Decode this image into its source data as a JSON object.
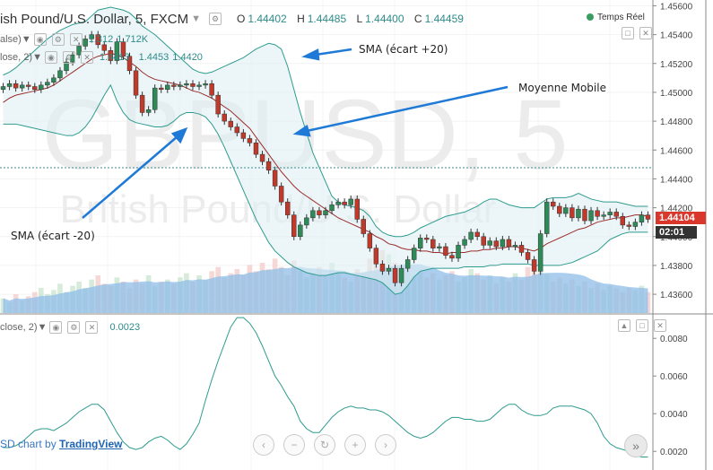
{
  "header": {
    "symbol": "ish Pound/U.S. Dollar, 5, FXCM",
    "ohlc": [
      {
        "key": "O",
        "value": "1.44402"
      },
      {
        "key": "H",
        "value": "1.44485"
      },
      {
        "key": "L",
        "value": "1.44400"
      },
      {
        "key": "C",
        "value": "1.44459"
      }
    ],
    "live_label": "Temps Réel"
  },
  "indicators": {
    "row1_label": "alse)",
    "row1_value": "1.312",
    "row1_value2": "1.712K",
    "row2_label": "lose, 2)",
    "row2_prefix": "1.4413",
    "row2_value": "1.4453",
    "row2_value2": "1.4420",
    "lower_label": "close, 2)",
    "lower_value": "0.0023"
  },
  "watermark": {
    "symbol": "GBPUSD, 5",
    "name": "British Pound/U.S. Dollar"
  },
  "price_tag": "1.44104",
  "time_tag": "02:01",
  "annotations": {
    "sma_plus": "SMA (écart +20)",
    "moving_average": "Moyenne Mobile",
    "sma_minus": "SMA (écart -20)"
  },
  "footer": {
    "prefix": "SD chart by ",
    "brand": "TradingView"
  },
  "colors": {
    "up": "#2e8b57",
    "down": "#c0392b",
    "band": "#2e9b8f",
    "ma": "#9b2d2d",
    "volume": "#9ec8ec",
    "arrow": "#1e7ad6"
  },
  "chart_data": [
    {
      "type": "candlestick",
      "title": "",
      "y_ticks": [
        1.456,
        1.454,
        1.452,
        1.45,
        1.448,
        1.446,
        1.444,
        1.442,
        1.44,
        1.438,
        1.436
      ],
      "y_tick_labels": [
        "1.45600",
        "1.45400",
        "1.45200",
        "1.45000",
        "1.44800",
        "1.44600",
        "1.44400",
        "1.44200",
        "1.44000",
        "1.43800",
        "1.43600"
      ],
      "ylim": [
        1.4347,
        1.4564
      ],
      "close": [
        1.4504,
        1.4506,
        1.4503,
        1.4505,
        1.4504,
        1.4502,
        1.4505,
        1.4507,
        1.451,
        1.4515,
        1.4521,
        1.4526,
        1.4532,
        1.4537,
        1.454,
        1.4533,
        1.4529,
        1.4522,
        1.4535,
        1.4525,
        1.4515,
        1.4498,
        1.4486,
        1.4488,
        1.4503,
        1.4502,
        1.4505,
        1.4504,
        1.4505,
        1.4506,
        1.4504,
        1.4505,
        1.4506,
        1.4498,
        1.4485,
        1.448,
        1.4476,
        1.4472,
        1.4468,
        1.4465,
        1.4457,
        1.4452,
        1.4446,
        1.4435,
        1.4424,
        1.4415,
        1.44,
        1.4408,
        1.4413,
        1.4418,
        1.4415,
        1.4418,
        1.4422,
        1.4424,
        1.4422,
        1.4426,
        1.4412,
        1.4402,
        1.4392,
        1.4381,
        1.4376,
        1.4378,
        1.4368,
        1.4378,
        1.4384,
        1.4392,
        1.4399,
        1.4398,
        1.4392,
        1.4393,
        1.4387,
        1.4385,
        1.4394,
        1.4398,
        1.4403,
        1.44,
        1.4394,
        1.4397,
        1.4393,
        1.4398,
        1.4393,
        1.4394,
        1.4389,
        1.4384,
        1.4376,
        1.4402,
        1.4424,
        1.4421,
        1.4416,
        1.442,
        1.4413,
        1.4419,
        1.4411,
        1.4418,
        1.4414,
        1.4415,
        1.4417,
        1.4414,
        1.4408,
        1.4407,
        1.441,
        1.4415,
        1.4412
      ],
      "sma": [
        1.4493,
        1.4496,
        1.4498,
        1.4499,
        1.45,
        1.4501,
        1.4502,
        1.4503,
        1.4505,
        1.4508,
        1.4511,
        1.4514,
        1.4517,
        1.452,
        1.4523,
        1.4525,
        1.4526,
        1.4527,
        1.4526,
        1.4524,
        1.4521,
        1.4518,
        1.4514,
        1.4511,
        1.4509,
        1.4508,
        1.4507,
        1.4506,
        1.4505,
        1.4503,
        1.4501,
        1.45,
        1.4498,
        1.4496,
        1.4493,
        1.449,
        1.4487,
        1.4483,
        1.4479,
        1.4475,
        1.4469,
        1.4463,
        1.4457,
        1.4451,
        1.4445,
        1.444,
        1.4435,
        1.4431,
        1.4428,
        1.4425,
        1.4422,
        1.4419,
        1.4416,
        1.4413,
        1.4411,
        1.4409,
        1.4407,
        1.4405,
        1.4403,
        1.44,
        1.4398,
        1.4395,
        1.4394,
        1.4392,
        1.4391,
        1.4391,
        1.439,
        1.439,
        1.4389,
        1.4389,
        1.4388,
        1.4389,
        1.4389,
        1.4389,
        1.439,
        1.439,
        1.4391,
        1.4391,
        1.4392,
        1.4392,
        1.4393,
        1.4393,
        1.4392,
        1.4391,
        1.439,
        1.4392,
        1.4395,
        1.4397,
        1.4399,
        1.4401,
        1.4403,
        1.4405,
        1.4406,
        1.4408,
        1.441,
        1.4411,
        1.4412,
        1.4413,
        1.4413,
        1.4414,
        1.4415,
        1.4415,
        1.4414
      ],
      "upper_band": [
        1.4512,
        1.4514,
        1.4517,
        1.4521,
        1.4525,
        1.4529,
        1.4533,
        1.4537,
        1.454,
        1.4543,
        1.4545,
        1.4547,
        1.4548,
        1.4549,
        1.4553,
        1.4557,
        1.4558,
        1.4559,
        1.4558,
        1.4557,
        1.4555,
        1.4551,
        1.4546,
        1.4543,
        1.454,
        1.4536,
        1.4532,
        1.4528,
        1.4524,
        1.452,
        1.4516,
        1.4514,
        1.4513,
        1.4514,
        1.4516,
        1.4518,
        1.452,
        1.4522,
        1.4524,
        1.4527,
        1.453,
        1.4532,
        1.4534,
        1.4533,
        1.453,
        1.4518,
        1.4502,
        1.4486,
        1.4472,
        1.4458,
        1.4448,
        1.4438,
        1.4428,
        1.4424,
        1.4422,
        1.4421,
        1.442,
        1.4418,
        1.4414,
        1.4407,
        1.4403,
        1.4401,
        1.44,
        1.44,
        1.4401,
        1.4403,
        1.4406,
        1.4408,
        1.441,
        1.4412,
        1.4414,
        1.4415,
        1.4416,
        1.4417,
        1.4419,
        1.4421,
        1.4424,
        1.4426,
        1.4426,
        1.4424,
        1.4422,
        1.4421,
        1.442,
        1.442,
        1.442,
        1.4423,
        1.4426,
        1.4427,
        1.4427,
        1.4427,
        1.4428,
        1.443,
        1.4428,
        1.4426,
        1.4425,
        1.4424,
        1.4424,
        1.4424,
        1.4423,
        1.4422,
        1.4421,
        1.4421,
        1.4421
      ],
      "lower_band": [
        1.4478,
        1.4478,
        1.4478,
        1.4477,
        1.4476,
        1.4475,
        1.4474,
        1.4473,
        1.4472,
        1.4471,
        1.447,
        1.447,
        1.4472,
        1.4476,
        1.4482,
        1.449,
        1.4498,
        1.4505,
        1.4494,
        1.4486,
        1.4481,
        1.4479,
        1.4478,
        1.4477,
        1.4476,
        1.4476,
        1.4477,
        1.448,
        1.4484,
        1.4486,
        1.4486,
        1.4485,
        1.4483,
        1.4478,
        1.4471,
        1.4462,
        1.4452,
        1.4442,
        1.4432,
        1.4422,
        1.4412,
        1.4404,
        1.4396,
        1.439,
        1.4386,
        1.4382,
        1.4379,
        1.4377,
        1.4375,
        1.4374,
        1.4373,
        1.4373,
        1.4374,
        1.4375,
        1.4375,
        1.4374,
        1.4373,
        1.4372,
        1.4371,
        1.437,
        1.4368,
        1.4364,
        1.436,
        1.4361,
        1.4366,
        1.4372,
        1.4376,
        1.4377,
        1.4378,
        1.4378,
        1.4378,
        1.4378,
        1.4378,
        1.4379,
        1.4379,
        1.4379,
        1.4379,
        1.438,
        1.438,
        1.4381,
        1.4381,
        1.4381,
        1.4381,
        1.4381,
        1.438,
        1.438,
        1.438,
        1.438,
        1.438,
        1.4381,
        1.4382,
        1.4384,
        1.4386,
        1.4388,
        1.439,
        1.4394,
        1.4398,
        1.44,
        1.4402,
        1.4403,
        1.4403,
        1.4403,
        1.4403
      ],
      "volume": [
        7,
        5,
        9,
        6,
        8,
        10,
        12,
        9,
        11,
        14,
        10,
        13,
        15,
        12,
        16,
        18,
        14,
        13,
        17,
        15,
        12,
        16,
        14,
        18,
        13,
        15,
        16,
        14,
        17,
        19,
        15,
        18,
        16,
        20,
        22,
        17,
        19,
        21,
        18,
        23,
        20,
        24,
        21,
        26,
        22,
        18,
        25,
        20,
        17,
        19,
        22,
        18,
        24,
        20,
        17,
        15,
        21,
        19,
        26,
        23,
        30,
        28,
        24,
        22,
        19,
        18,
        20,
        17,
        19,
        16,
        18,
        20,
        15,
        17,
        21,
        19,
        16,
        18,
        14,
        17,
        15,
        19,
        16,
        22,
        26,
        24,
        19,
        15,
        17,
        14,
        16,
        13,
        15,
        12,
        14,
        11,
        13,
        12,
        10,
        12,
        11,
        13,
        10
      ]
    },
    {
      "type": "line",
      "title": "",
      "y_ticks": [
        0.008,
        0.006,
        0.004,
        0.002
      ],
      "y_tick_labels": [
        "0.0080",
        "0.0060",
        "0.0040",
        "0.0020"
      ],
      "ylim": [
        0.0012,
        0.0092
      ],
      "values": [
        0.0022,
        0.0022,
        0.0023,
        0.0025,
        0.0028,
        0.0031,
        0.0032,
        0.0032,
        0.0031,
        0.0033,
        0.0035,
        0.0038,
        0.0041,
        0.0043,
        0.0045,
        0.0045,
        0.0042,
        0.0036,
        0.003,
        0.0025,
        0.0022,
        0.0021,
        0.0022,
        0.0025,
        0.0027,
        0.0028,
        0.0026,
        0.0023,
        0.0021,
        0.0024,
        0.0029,
        0.0035,
        0.0047,
        0.0058,
        0.0068,
        0.0077,
        0.0086,
        0.0091,
        0.0091,
        0.0088,
        0.0083,
        0.0076,
        0.0068,
        0.006,
        0.0055,
        0.0049,
        0.0044,
        0.0036,
        0.0032,
        0.003,
        0.003,
        0.0034,
        0.0038,
        0.0041,
        0.0043,
        0.0044,
        0.0043,
        0.0043,
        0.0042,
        0.0042,
        0.0041,
        0.0039,
        0.0036,
        0.0033,
        0.003,
        0.0028,
        0.0027,
        0.0028,
        0.003,
        0.0033,
        0.0036,
        0.0038,
        0.0038,
        0.0037,
        0.0037,
        0.0036,
        0.0036,
        0.0037,
        0.004,
        0.0043,
        0.0045,
        0.0045,
        0.0042,
        0.004,
        0.0039,
        0.0039,
        0.004,
        0.0043,
        0.0044,
        0.0044,
        0.0044,
        0.0043,
        0.0042,
        0.004,
        0.0035,
        0.0028,
        0.0024,
        0.0022,
        0.0021,
        0.002,
        0.0018,
        0.0017,
        0.0017
      ]
    }
  ]
}
